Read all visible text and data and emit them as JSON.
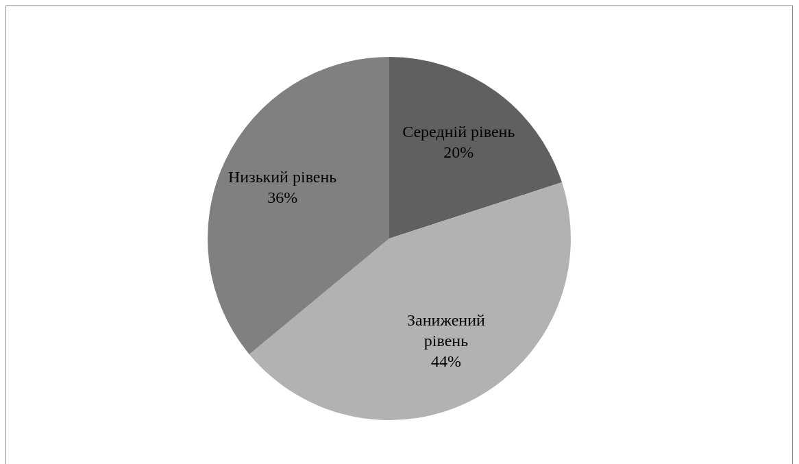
{
  "chart_data": {
    "type": "pie",
    "categories": [
      "Середній рівень",
      "Занижений рівень",
      "Низький рівень"
    ],
    "values": [
      20,
      44,
      36
    ],
    "colors": [
      "#606060",
      "#b2b2b2",
      "#808080"
    ],
    "value_labels": [
      "20%",
      "44%",
      "36%"
    ],
    "legend": false
  }
}
